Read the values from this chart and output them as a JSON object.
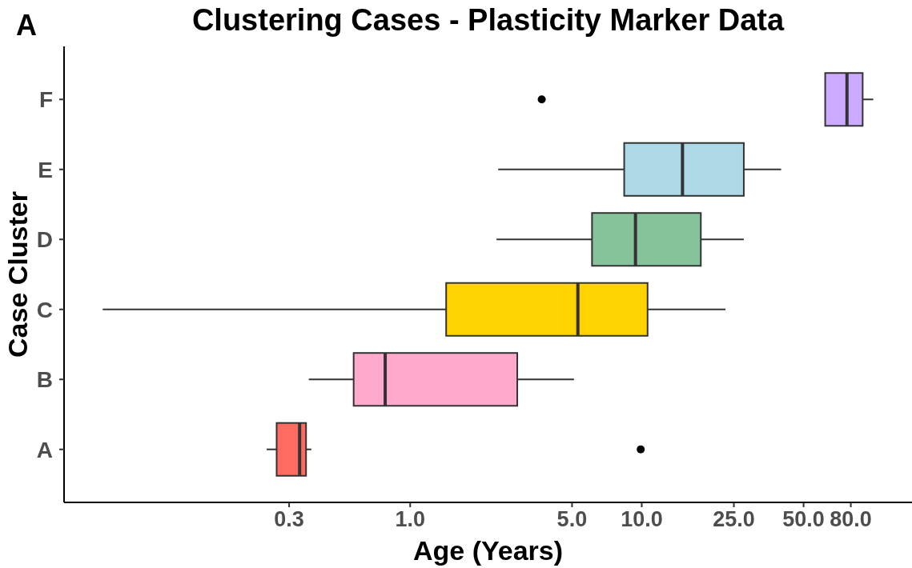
{
  "chart_data": {
    "type": "box",
    "title": "Clustering Cases - Plasticity Marker Data",
    "xlabel": "Age (Years)",
    "ylabel": "Case Cluster",
    "annotations": [
      "A"
    ],
    "orientation": "horizontal",
    "log": "x",
    "categories": [
      "F",
      "E",
      "D",
      "C",
      "B",
      "A"
    ],
    "colors": [
      "#cbaaff",
      "#add8e6",
      "#87c39a",
      "#ffd300",
      "#ffaacc",
      "#ff6a61"
    ],
    "boxes": [
      {
        "low": 62,
        "q1": 62,
        "median": 77,
        "q3": 90,
        "high": 100,
        "outliers": [
          3.7
        ]
      },
      {
        "low": 2.4,
        "q1": 8.4,
        "median": 15,
        "q3": 27.6,
        "high": 40
      },
      {
        "low": 2.36,
        "q1": 6.1,
        "median": 9.4,
        "q3": 18,
        "high": 27.6
      },
      {
        "low": 0.047,
        "q1": 1.43,
        "median": 5.3,
        "q3": 10.6,
        "high": 23
      },
      {
        "low": 0.365,
        "q1": 0.57,
        "median": 0.78,
        "q3": 2.9,
        "high": 5.1
      },
      {
        "low": 0.24,
        "q1": 0.265,
        "median": 0.333,
        "q3": 0.355,
        "high": 0.374,
        "outliers": [
          9.9
        ]
      }
    ],
    "xlim": [
      0.032,
      147
    ],
    "xticks": [
      {
        "value": 0.3,
        "label": "0.3"
      },
      {
        "value": 1,
        "label": "1.0"
      },
      {
        "value": 5,
        "label": "5.0"
      },
      {
        "value": 10,
        "label": "10.0"
      },
      {
        "value": 25,
        "label": "25.0"
      },
      {
        "value": 50,
        "label": "50.0"
      },
      {
        "value": 80,
        "label": "80.0"
      }
    ]
  }
}
